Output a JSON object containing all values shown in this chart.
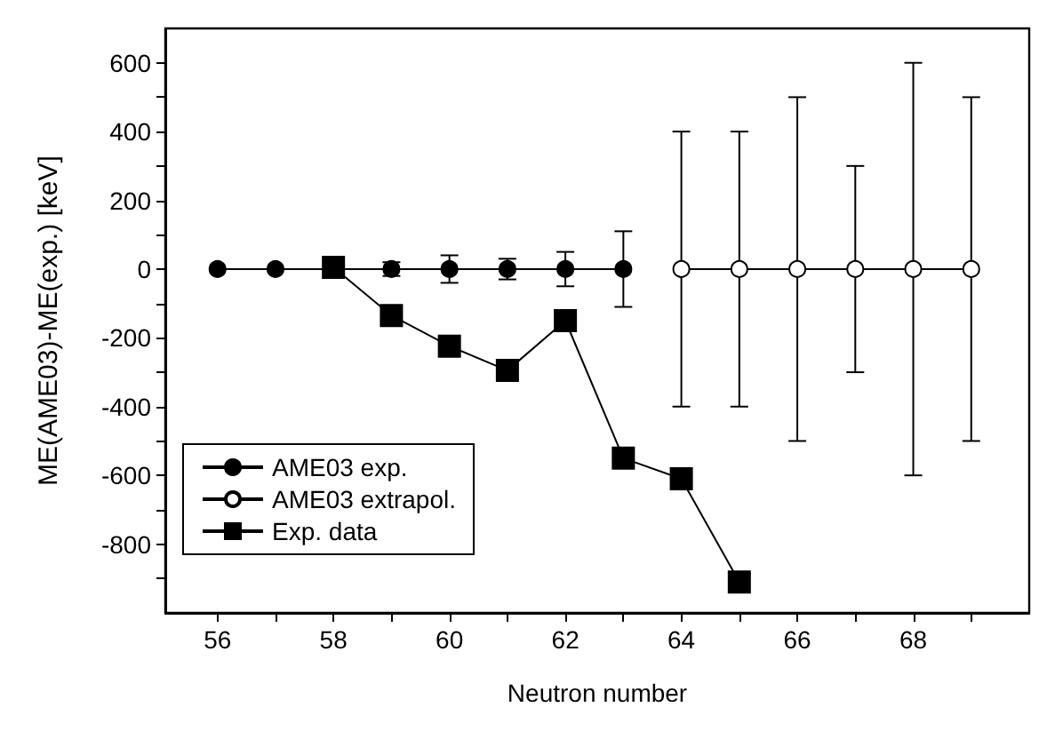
{
  "chart_data": {
    "type": "line",
    "xlabel": "Neutron number",
    "ylabel": "ME(AME03)-ME(exp.) [keV]",
    "xlim": [
      55.1,
      70
    ],
    "ylim": [
      -1000,
      700
    ],
    "xticks": [
      56,
      {
        "value": 57,
        "label": null
      },
      58,
      {
        "value": 59,
        "label": null
      },
      60,
      {
        "value": 61,
        "label": null
      },
      62,
      {
        "value": 63,
        "label": null
      },
      64,
      {
        "value": 65,
        "label": null
      },
      66,
      {
        "value": 67,
        "label": null
      },
      68,
      {
        "value": 69,
        "label": null
      }
    ],
    "yticks": [
      {
        "value": -900,
        "label": null
      },
      -800,
      {
        "value": -700,
        "label": null
      },
      -600,
      {
        "value": -500,
        "label": null
      },
      -400,
      {
        "value": -300,
        "label": null
      },
      -200,
      {
        "value": -100,
        "label": null
      },
      0,
      {
        "value": 100,
        "label": null
      },
      200,
      {
        "value": 300,
        "label": null
      },
      400,
      {
        "value": 500,
        "label": null
      },
      600
    ],
    "grid": false,
    "legend": "bottom left",
    "line_style": "solid",
    "series": [
      {
        "name": "AME03 exp.",
        "color": "#000000",
        "marker": "circle",
        "x": [
          56,
          57,
          58,
          59,
          60,
          61,
          62,
          63
        ],
        "values": [
          0,
          0,
          0,
          0,
          0,
          0,
          0,
          0
        ],
        "errors": [
          null,
          null,
          null,
          20,
          40,
          30,
          50,
          110
        ]
      },
      {
        "name": "AME03 extrapol.",
        "color": "#000000",
        "marker": "circle",
        "colors": [
          "#ffffff",
          "#ffffff",
          "#ffffff",
          "#ffffff",
          "#ffffff",
          "#ffffff"
        ],
        "x": [
          64,
          65,
          66,
          67,
          68,
          69
        ],
        "values": [
          0,
          0,
          0,
          0,
          0,
          0
        ],
        "errors": [
          400,
          400,
          500,
          300,
          600,
          500
        ]
      },
      {
        "name": "Exp. data",
        "color": "#000000",
        "marker": "square",
        "x": [
          58,
          59,
          60,
          61,
          62,
          63,
          64,
          65
        ],
        "values": [
          5,
          -135,
          -224,
          -295,
          -150,
          -550,
          -610,
          -910
        ]
      }
    ]
  }
}
